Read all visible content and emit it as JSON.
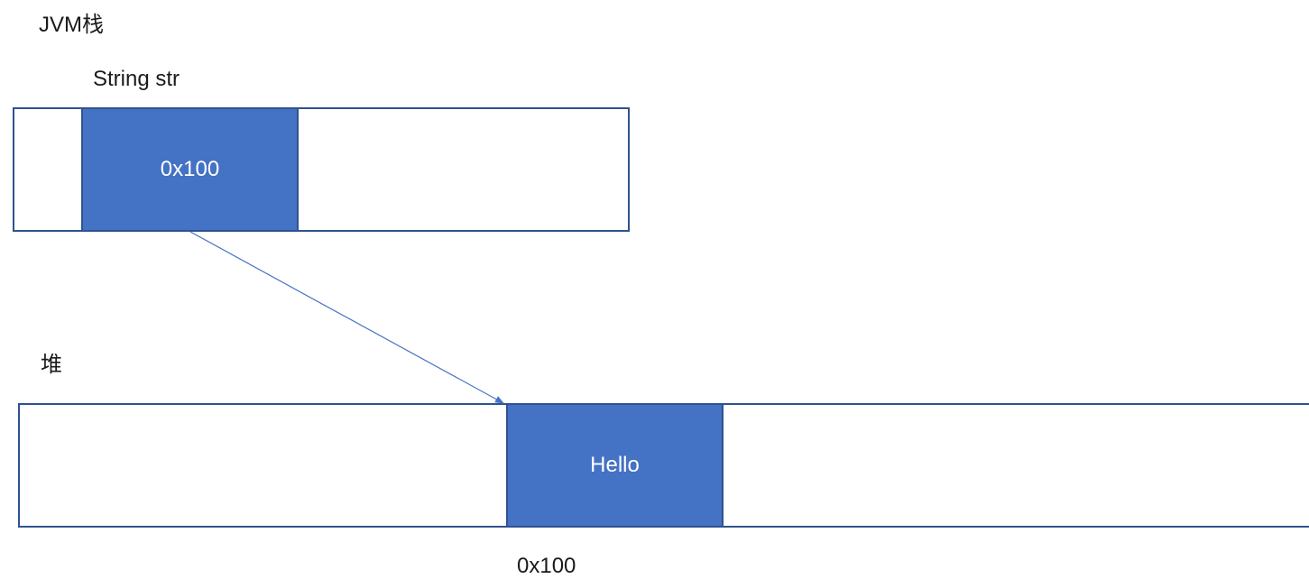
{
  "stack": {
    "title": "JVM栈",
    "variable_label": "String str",
    "cell_value": "0x100"
  },
  "heap": {
    "title": "堆",
    "cell_value": "Hello",
    "address_label": "0x100"
  },
  "colors": {
    "cell_fill": "#4472C4",
    "border": "#2F528F",
    "arrow": "#4472C4"
  }
}
